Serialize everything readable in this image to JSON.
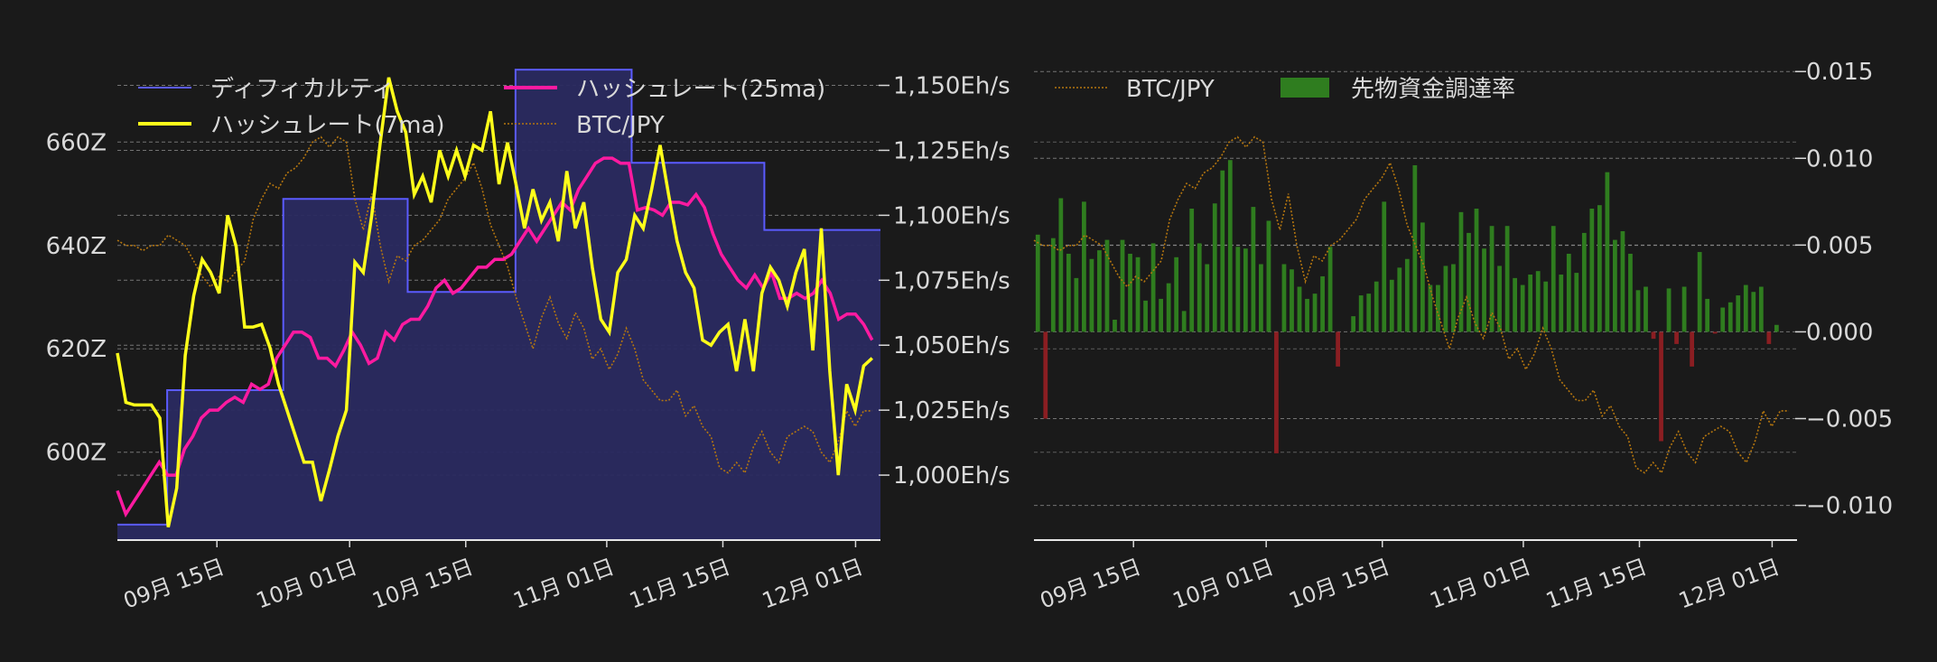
{
  "colors": {
    "background": "#1a1a1a",
    "text": "#d9d9d9",
    "grid": "#bfbfbf",
    "difficulty_line": "#5b5bff",
    "difficulty_fill": "#2a2a60",
    "hash7": "#ffff1a",
    "hash25": "#ff1aa0",
    "btc": "#b5760f",
    "funding_pos": "#2f7d1f",
    "funding_neg": "#8b1e22"
  },
  "chart_data": [
    {
      "type": "line",
      "x_tick_labels": [
        "09月 15日",
        "10月 01日",
        "10月 15日",
        "11月 01日",
        "11月 15日",
        "12月 01日"
      ],
      "x_tick_days": [
        12,
        28,
        42,
        59,
        73,
        89
      ],
      "x_range_days": [
        0,
        92
      ],
      "legend_placement": "top-left",
      "legend": [
        {
          "key": "difficulty",
          "label": "ディフィカルティ"
        },
        {
          "key": "hash25",
          "label": "ハッシュレート(25ma)"
        },
        {
          "key": "hash7",
          "label": "ハッシュレート(7ma)"
        },
        {
          "key": "btc",
          "label": "BTC/JPY"
        }
      ],
      "left_axis": {
        "tick_labels": [
          "660Z",
          "640Z",
          "620Z",
          "600Z"
        ],
        "tick_values": [
          660,
          640,
          620,
          600
        ],
        "range": [
          583,
          677
        ]
      },
      "right_axis": {
        "tick_labels": [
          "1,150Eh/s",
          "1,125Eh/s",
          "1,100Eh/s",
          "1,075Eh/s",
          "1,050Eh/s",
          "1,025Eh/s",
          "1,000Eh/s"
        ],
        "tick_values": [
          1150,
          1125,
          1100,
          1075,
          1050,
          1025,
          1000
        ],
        "range": [
          975,
          1162
        ]
      },
      "grid": true,
      "difficulty_steps": [
        [
          0,
          586
        ],
        [
          6,
          612
        ],
        [
          20,
          649
        ],
        [
          35,
          631
        ],
        [
          48,
          674
        ],
        [
          62,
          656
        ],
        [
          78,
          643
        ],
        [
          92,
          643
        ]
      ],
      "hash7": [
        1047,
        1028,
        1027,
        1027,
        1027,
        1022,
        980,
        995,
        1046,
        1069,
        1083,
        1078,
        1070,
        1100,
        1088,
        1057,
        1057,
        1058,
        1049,
        1035,
        1025,
        1015,
        1005,
        1005,
        990,
        1002,
        1015,
        1025,
        1082,
        1078,
        1100,
        1128,
        1153,
        1140,
        1132,
        1108,
        1115,
        1105,
        1125,
        1115,
        1125,
        1115,
        1127,
        1125,
        1140,
        1112,
        1128,
        1112,
        1095,
        1110,
        1098,
        1105,
        1090,
        1117,
        1095,
        1105,
        1080,
        1060,
        1055,
        1078,
        1083,
        1100,
        1095,
        1110,
        1127,
        1108,
        1090,
        1078,
        1072,
        1052,
        1050,
        1055,
        1058,
        1040,
        1060,
        1040,
        1070,
        1080,
        1075,
        1065,
        1078,
        1087,
        1048,
        1095,
        1040,
        1000,
        1035,
        1025,
        1042,
        1045
      ],
      "hash25": [
        994,
        985,
        990,
        995,
        1000,
        1005,
        1000,
        1000,
        1010,
        1015,
        1022,
        1025,
        1025,
        1028,
        1030,
        1028,
        1035,
        1033,
        1035,
        1045,
        1050,
        1055,
        1055,
        1053,
        1045,
        1045,
        1042,
        1048,
        1055,
        1050,
        1043,
        1045,
        1055,
        1052,
        1058,
        1060,
        1060,
        1065,
        1072,
        1075,
        1070,
        1072,
        1076,
        1080,
        1080,
        1083,
        1083,
        1085,
        1090,
        1095,
        1090,
        1095,
        1100,
        1105,
        1102,
        1110,
        1115,
        1120,
        1122,
        1122,
        1120,
        1120,
        1102,
        1103,
        1102,
        1100,
        1105,
        1105,
        1104,
        1108,
        1103,
        1093,
        1085,
        1080,
        1075,
        1072,
        1077,
        1072,
        1078,
        1068,
        1068,
        1070,
        1068,
        1070,
        1075,
        1070,
        1060,
        1062,
        1062,
        1058,
        1052
      ],
      "btc": [
        641,
        640,
        640,
        639,
        640,
        640,
        642,
        641,
        640,
        637,
        634,
        632,
        634,
        633,
        635,
        637,
        645,
        649,
        652,
        651,
        654,
        655,
        657,
        660,
        661,
        659,
        661,
        660,
        649,
        643,
        650,
        640,
        633,
        638,
        637,
        640,
        641,
        643,
        645,
        649,
        651,
        653,
        656,
        651,
        644,
        640,
        636,
        630,
        625,
        620,
        626,
        630,
        625,
        622,
        627,
        624,
        618,
        620,
        616,
        619,
        624,
        620,
        614,
        612,
        610,
        610,
        612,
        607,
        609,
        605,
        603,
        597,
        596,
        598,
        596,
        601,
        604,
        600,
        598,
        603,
        604,
        605,
        604,
        600,
        598,
        602,
        608,
        605,
        608,
        608
      ]
    },
    {
      "type": "bar",
      "x_tick_labels": [
        "09月 15日",
        "10月 01日",
        "10月 15日",
        "11月 01日",
        "11月 15日",
        "12月 01日"
      ],
      "x_tick_days": [
        12,
        28,
        42,
        59,
        73,
        89
      ],
      "x_range_days": [
        0,
        92
      ],
      "legend_placement": "top-left",
      "legend": [
        {
          "key": "btc",
          "label": "BTC/JPY"
        },
        {
          "key": "funding",
          "label": "先物資金調達率"
        }
      ],
      "right_axis": {
        "tick_labels": [
          "0.015",
          "0.010",
          "0.005",
          "0.000",
          "−0.005",
          "−0.010"
        ],
        "tick_values": [
          0.015,
          0.01,
          0.005,
          0,
          -0.005,
          -0.01
        ],
        "range": [
          -0.012,
          0.016
        ]
      },
      "grid": true,
      "funding_rate": [
        0.0056,
        -0.005,
        0.0054,
        0.0077,
        0.0045,
        0.0031,
        0.0075,
        0.0042,
        0.0047,
        0.0053,
        0.0007,
        0.0053,
        0.0045,
        0.0043,
        0.0018,
        0.0051,
        0.0019,
        0.0028,
        0.0043,
        0.0012,
        0.0071,
        0.0051,
        0.0039,
        0.0074,
        0.0093,
        0.0099,
        0.0049,
        0.0048,
        0.0072,
        0.0039,
        0.0064,
        -0.007,
        0.0039,
        0.0036,
        0.0026,
        0.0019,
        0.0022,
        0.0032,
        0.0049,
        -0.002,
        0,
        0.0009,
        0.0021,
        0.0022,
        0.0029,
        0.0075,
        0.003,
        0.0037,
        0.0042,
        0.0096,
        0.0063,
        0.0027,
        0.0027,
        0.0038,
        0.0039,
        0.0069,
        0.0057,
        0.0071,
        0.0048,
        0.0061,
        0.0038,
        0.0061,
        0.0031,
        0.0027,
        0.0033,
        0.0035,
        0.0029,
        0.0061,
        0.0033,
        0.0045,
        0.0034,
        0.0057,
        0.0071,
        0.0073,
        0.0092,
        0.0053,
        0.0058,
        0.0045,
        0.0024,
        0.0026,
        -0.0004,
        -0.0063,
        0.0025,
        -0.0007,
        0.0026,
        -0.002,
        0.0046,
        0.0019,
        -0.0001,
        0.0014,
        0.0017,
        0.0021,
        0.0027,
        0.0023,
        0.0026,
        -0.0007,
        0.0004
      ]
    }
  ]
}
